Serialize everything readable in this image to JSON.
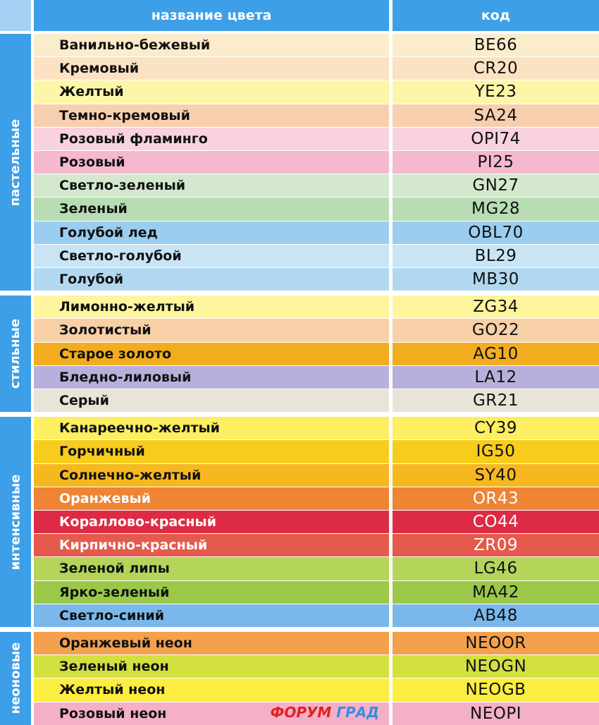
{
  "header": {
    "name_col": "название цвета",
    "code_col": "код"
  },
  "groups": [
    {
      "label": "пастельные",
      "rows": [
        {
          "name": "Ванильно-бежевый",
          "code": "BE66",
          "color": "#fbeccb"
        },
        {
          "name": "Кремовый",
          "code": "CR20",
          "color": "#fbe2c2"
        },
        {
          "name": "Желтый",
          "code": "YE23",
          "color": "#fdf6a8"
        },
        {
          "name": "Темно-кремовый",
          "code": "SA24",
          "color": "#f8cfae"
        },
        {
          "name": "Розовый фламинго",
          "code": "OPI74",
          "color": "#f8d2dc"
        },
        {
          "name": "Розовый",
          "code": "PI25",
          "color": "#f5b8cc"
        },
        {
          "name": "Светло-зеленый",
          "code": "GN27",
          "color": "#d3e8cd"
        },
        {
          "name": "Зеленый",
          "code": "MG28",
          "color": "#b8dcb4"
        },
        {
          "name": "Голубой лед",
          "code": "OBL70",
          "color": "#9acdf0"
        },
        {
          "name": "Светло-голубой",
          "code": "BL29",
          "color": "#c9e4f5"
        },
        {
          "name": "Голубой",
          "code": "MB30",
          "color": "#b2d8f0"
        }
      ]
    },
    {
      "label": "стильные",
      "rows": [
        {
          "name": "Лимонно-желтый",
          "code": "ZG34",
          "color": "#fef59c"
        },
        {
          "name": "Золотистый",
          "code": "GO22",
          "color": "#f8d0a8"
        },
        {
          "name": "Старое золото",
          "code": "AG10",
          "color": "#f2ad1e"
        },
        {
          "name": "Бледно-лиловый",
          "code": "LA12",
          "color": "#b8b0dc"
        },
        {
          "name": "Серый",
          "code": "GR21",
          "color": "#e8e4d8"
        }
      ]
    },
    {
      "label": "интенсивные",
      "rows": [
        {
          "name": "Канареечно-желтый",
          "code": "CY39",
          "color": "#fdee62"
        },
        {
          "name": "Горчичный",
          "code": "IG50",
          "color": "#f8cc1c"
        },
        {
          "name": "Солнечно-желтый",
          "code": "SY40",
          "color": "#f6b81e"
        },
        {
          "name": "Оранжевый",
          "code": "OR43",
          "color": "#ee8434",
          "white": true
        },
        {
          "name": "Кораллово-красный",
          "code": "CO44",
          "color": "#dc2b44",
          "white": true
        },
        {
          "name": "Кирпично-красный",
          "code": "ZR09",
          "color": "#e45a4c",
          "white": true
        },
        {
          "name": "Зеленой липы",
          "code": "LG46",
          "color": "#b4d45a"
        },
        {
          "name": "Ярко-зеленый",
          "code": "MA42",
          "color": "#9cc84a"
        },
        {
          "name": "Светло-синий",
          "code": "AB48",
          "color": "#7ab8ec"
        }
      ]
    },
    {
      "label": "неоновые",
      "rows": [
        {
          "name": "Оранжевый неон",
          "code": "NEOOR",
          "color": "#f4a04c"
        },
        {
          "name": "Зеленый неон",
          "code": "NEOGN",
          "color": "#d2e040"
        },
        {
          "name": "Желтый неон",
          "code": "NEOGB",
          "color": "#fcee40"
        },
        {
          "name": "Розовый неон",
          "code": "NEOPI",
          "color": "#f4b0c8"
        }
      ]
    }
  ],
  "watermark": {
    "part1": "ФОРУМ",
    "part2": "ГРАД"
  }
}
